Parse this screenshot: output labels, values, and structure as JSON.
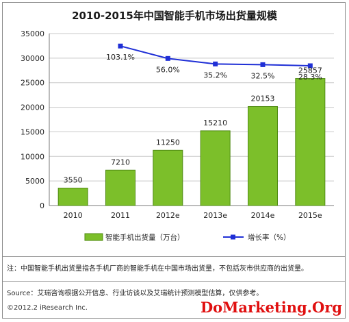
{
  "chart_data": {
    "type": "bar",
    "title": "2010-2015年中国智能手机市场出货量规模",
    "categories": [
      "2010",
      "2011",
      "2012e",
      "2013e",
      "2014e",
      "2015e"
    ],
    "series": [
      {
        "name": "智能手机出货量（万台）",
        "type": "bar",
        "values": [
          3550,
          7210,
          11250,
          15210,
          20153,
          25857
        ]
      },
      {
        "name": "增长率（%）",
        "type": "line",
        "values": [
          null,
          103.1,
          56.0,
          35.2,
          32.5,
          28.3
        ],
        "labels": [
          "",
          "103.1%",
          "56.0%",
          "35.2%",
          "32.5%",
          "28.3%"
        ]
      }
    ],
    "bar_labels": [
      "3550",
      "7210",
      "11250",
      "15210",
      "20153",
      "25857"
    ],
    "ylim": [
      0,
      35000
    ],
    "yticks": [
      "0",
      "5000",
      "10000",
      "15000",
      "20000",
      "25000",
      "30000",
      "35000"
    ],
    "grid": true,
    "legend": "bottom",
    "colors": {
      "bar": "#7cbf2a",
      "bar_edge": "#4f8a12",
      "line": "#1f2fd6",
      "grid": "#c8c8c8"
    }
  },
  "notes": {
    "note": "注：中国智能手机出货量指各手机厂商的智能手机在中国市场出货量，不包括灰市供应商的出货量。",
    "source": "Source：艾瑞咨询根据公开信息、行业访谈以及艾瑞统计预测模型估算，仅供参考。",
    "copyright": "©2012.2 iResearch Inc.",
    "watermark": "DoMarketing.Org"
  }
}
